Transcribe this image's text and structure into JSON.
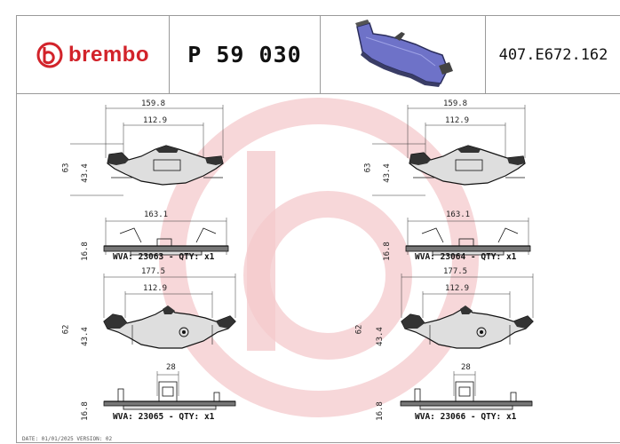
{
  "header": {
    "brand": "brembo",
    "part_number": "P 59 030",
    "reference": "407.E672.162"
  },
  "pads": [
    {
      "width_outer": "159.8",
      "width_inner": "112.9",
      "height_outer": "63",
      "height_inner": "43.4",
      "side_length": "163.1",
      "thickness": "16.8",
      "wva_label": "WVA: 23063 - QTY: x1"
    },
    {
      "width_outer": "159.8",
      "width_inner": "112.9",
      "height_outer": "63",
      "height_inner": "43.4",
      "side_length": "163.1",
      "thickness": "16.8",
      "wva_label": "WVA: 23064 - QTY: x1"
    },
    {
      "width_outer": "177.5",
      "width_inner": "112.9",
      "height_outer": "62",
      "height_inner": "43.4",
      "side_length": "28",
      "thickness": "16.8",
      "wva_label": "WVA: 23065 - QTY: x1"
    },
    {
      "width_outer": "177.5",
      "width_inner": "112.9",
      "height_outer": "62",
      "height_inner": "43.4",
      "side_length": "28",
      "thickness": "16.8",
      "wva_label": "WVA: 23066 - QTY: x1"
    }
  ],
  "colors": {
    "brand_red": "#d2232a",
    "watermark": "#f4c9cc",
    "pad_fill": "#dedede",
    "photo_pad": "#6e72c8"
  },
  "footer": {
    "text": "DATE: 01/01/2025 VERSION: 02"
  }
}
